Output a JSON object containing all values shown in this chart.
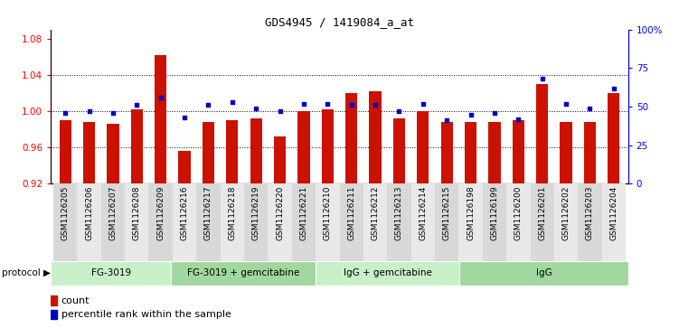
{
  "title": "GDS4945 / 1419084_a_at",
  "samples": [
    "GSM1126205",
    "GSM1126206",
    "GSM1126207",
    "GSM1126208",
    "GSM1126209",
    "GSM1126216",
    "GSM1126217",
    "GSM1126218",
    "GSM1126219",
    "GSM1126220",
    "GSM1126221",
    "GSM1126210",
    "GSM1126211",
    "GSM1126212",
    "GSM1126213",
    "GSM1126214",
    "GSM1126215",
    "GSM1126198",
    "GSM1126199",
    "GSM1126200",
    "GSM1126201",
    "GSM1126202",
    "GSM1126203",
    "GSM1126204"
  ],
  "counts": [
    0.99,
    0.988,
    0.986,
    1.002,
    1.062,
    0.956,
    0.988,
    0.99,
    0.992,
    0.972,
    1.0,
    1.002,
    1.02,
    1.022,
    0.992,
    1.0,
    0.988,
    0.988,
    0.988,
    0.99,
    1.03,
    0.988,
    0.988,
    1.02
  ],
  "percentile_ranks": [
    46,
    47,
    46,
    51,
    56,
    43,
    51,
    53,
    49,
    47,
    52,
    52,
    51,
    51,
    47,
    52,
    41,
    45,
    46,
    42,
    68,
    52,
    49,
    62
  ],
  "groups": [
    {
      "label": "FG-3019",
      "start": 0,
      "end": 5
    },
    {
      "label": "FG-3019 + gemcitabine",
      "start": 5,
      "end": 11
    },
    {
      "label": "IgG + gemcitabine",
      "start": 11,
      "end": 17
    },
    {
      "label": "IgG",
      "start": 17,
      "end": 24
    }
  ],
  "group_colors": [
    "#c8f0c8",
    "#a0d8a0",
    "#c8f0c8",
    "#a0d8a0"
  ],
  "ylim_left": [
    0.92,
    1.09
  ],
  "ylim_right": [
    0,
    100
  ],
  "yticks_left": [
    0.92,
    0.96,
    1.0,
    1.04,
    1.08
  ],
  "yticks_right": [
    0,
    25,
    50,
    75,
    100
  ],
  "bar_color": "#CC1100",
  "dot_color": "#0000CC",
  "bar_width": 0.5,
  "protocol_label": "protocol",
  "legend_count": "count",
  "legend_percentile": "percentile rank within the sample",
  "grid_lines": [
    1.04,
    1.0,
    0.96
  ],
  "xtick_bg_colors": [
    "#d8d8d8",
    "#e8e8e8"
  ]
}
